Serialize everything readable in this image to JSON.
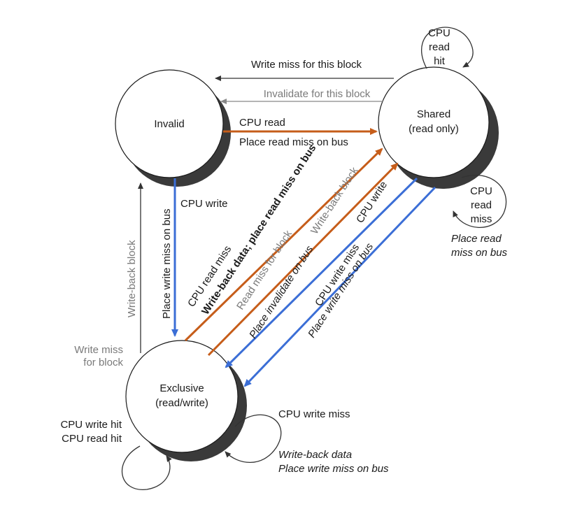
{
  "states": {
    "invalid": "Invalid",
    "shared_1": "Shared",
    "shared_2": "(read only)",
    "exclusive_1": "Exclusive",
    "exclusive_2": "(read/write)"
  },
  "labels": {
    "write_miss_this_block": "Write miss for this block",
    "invalidate_this_block": "Invalidate for this block",
    "cpu_read": "CPU read",
    "place_read_miss_bus": "Place read miss on bus",
    "cpu_read_hit_1": "CPU",
    "cpu_read_hit_2": "read",
    "cpu_read_hit_3": "hit",
    "cpu_read_miss_shared_1": "CPU",
    "cpu_read_miss_shared_2": "read",
    "cpu_read_miss_shared_3": "miss",
    "place_read_miss_shared_1": "Place read",
    "place_read_miss_shared_2": "miss on bus",
    "cpu_write": "CPU write",
    "place_write_miss_bus": "Place write miss on bus",
    "write_back_block_left": "Write-back block",
    "write_miss_for_block_1": "Write miss",
    "write_miss_for_block_2": "for block",
    "cpu_read_miss_excl": "CPU read miss",
    "write_back_place_read_miss": "Write-back data; place read miss on bus",
    "read_miss_for_block": "Read miss for block",
    "write_back_block_diag": "Write-back block",
    "cpu_write_diag": "CPU write",
    "place_invalidate_bus": "Place invalidate on bus",
    "cpu_write_miss_diag": "CPU write miss",
    "place_write_miss_diag": "Place write miss on bus",
    "cpu_write_hit": "CPU write hit",
    "cpu_read_hit": "CPU read hit",
    "cpu_write_miss_excl": "CPU write miss",
    "write_back_data": "Write-back data",
    "place_write_miss_excl": "Place write miss on bus"
  },
  "colors": {
    "orange": "#c65d1a",
    "blue": "#3b6ed6",
    "gray": "#888888",
    "black": "#333333"
  }
}
